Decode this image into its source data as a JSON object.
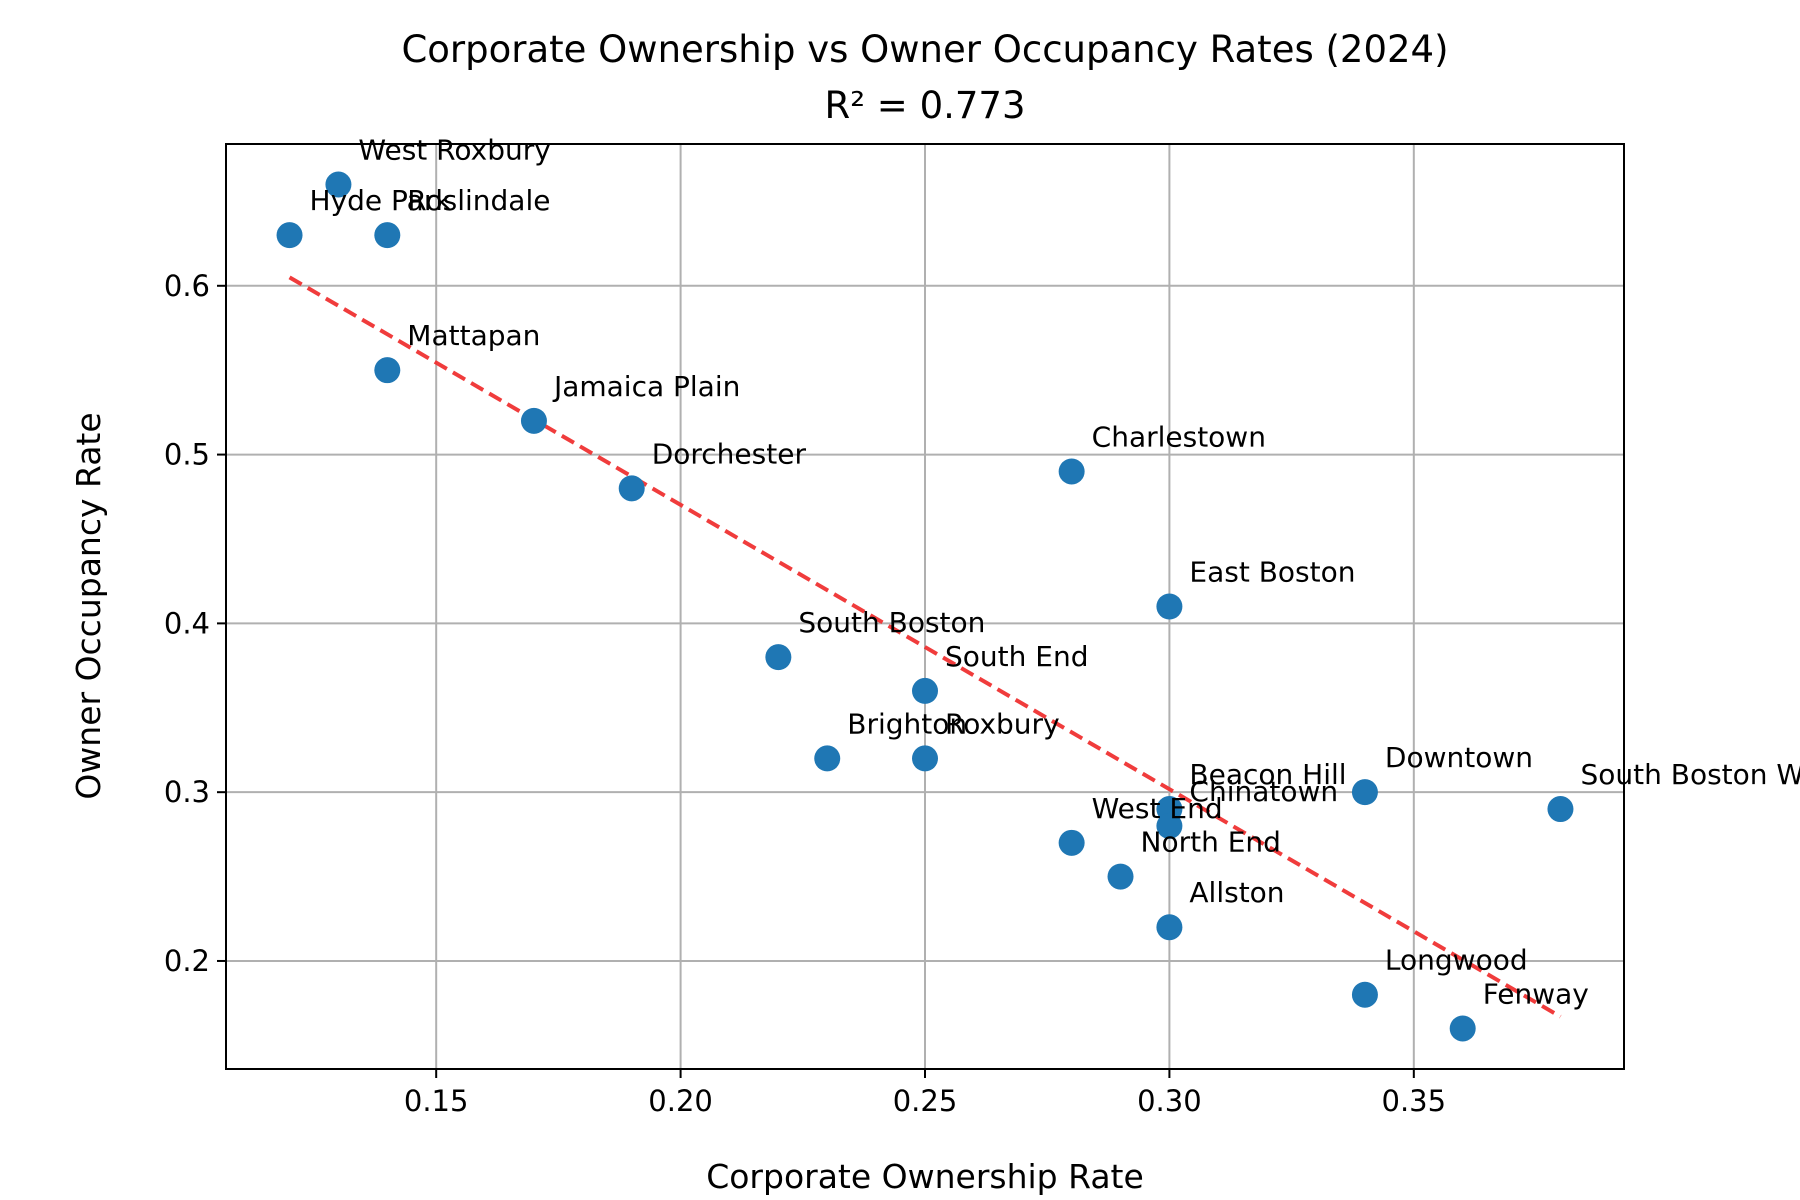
{
  "chart_data": {
    "type": "scatter",
    "title": "Corporate Ownership vs Owner Occupancy Rates (2024)",
    "subtitle": "R² = 0.773",
    "xlabel": "Corporate Ownership Rate",
    "ylabel": "Owner Occupancy Rate",
    "xlim": [
      0.107,
      0.393
    ],
    "ylim": [
      0.136,
      0.684
    ],
    "xticks": [
      "0.15",
      "0.20",
      "0.25",
      "0.30",
      "0.35"
    ],
    "yticks": [
      "0.2",
      "0.3",
      "0.4",
      "0.5",
      "0.6"
    ],
    "grid": true,
    "marker_color": "#1f77b4",
    "trendline": {
      "color": "#f03232",
      "style": "dashed",
      "x": [
        0.12,
        0.38
      ],
      "y": [
        0.605,
        0.167
      ]
    },
    "points": [
      {
        "label": "West Roxbury",
        "x": 0.13,
        "y": 0.66
      },
      {
        "label": "Hyde Park",
        "x": 0.12,
        "y": 0.63
      },
      {
        "label": "Roslindale",
        "x": 0.14,
        "y": 0.63
      },
      {
        "label": "Mattapan",
        "x": 0.14,
        "y": 0.55
      },
      {
        "label": "Jamaica Plain",
        "x": 0.17,
        "y": 0.52
      },
      {
        "label": "Dorchester",
        "x": 0.19,
        "y": 0.48
      },
      {
        "label": "Charlestown",
        "x": 0.28,
        "y": 0.49
      },
      {
        "label": "East Boston",
        "x": 0.3,
        "y": 0.41
      },
      {
        "label": "South Boston",
        "x": 0.22,
        "y": 0.38
      },
      {
        "label": "South End",
        "x": 0.25,
        "y": 0.36
      },
      {
        "label": "Brighton",
        "x": 0.23,
        "y": 0.32
      },
      {
        "label": "Roxbury",
        "x": 0.25,
        "y": 0.32
      },
      {
        "label": "Beacon Hill",
        "x": 0.3,
        "y": 0.29
      },
      {
        "label": "Chinatown",
        "x": 0.3,
        "y": 0.28
      },
      {
        "label": "Downtown",
        "x": 0.34,
        "y": 0.3
      },
      {
        "label": "South Boston Waterfront",
        "x": 0.38,
        "y": 0.29
      },
      {
        "label": "West End",
        "x": 0.28,
        "y": 0.27
      },
      {
        "label": "North End",
        "x": 0.29,
        "y": 0.25
      },
      {
        "label": "Allston",
        "x": 0.3,
        "y": 0.22
      },
      {
        "label": "Longwood",
        "x": 0.34,
        "y": 0.18
      },
      {
        "label": "Fenway",
        "x": 0.36,
        "y": 0.16
      }
    ]
  }
}
